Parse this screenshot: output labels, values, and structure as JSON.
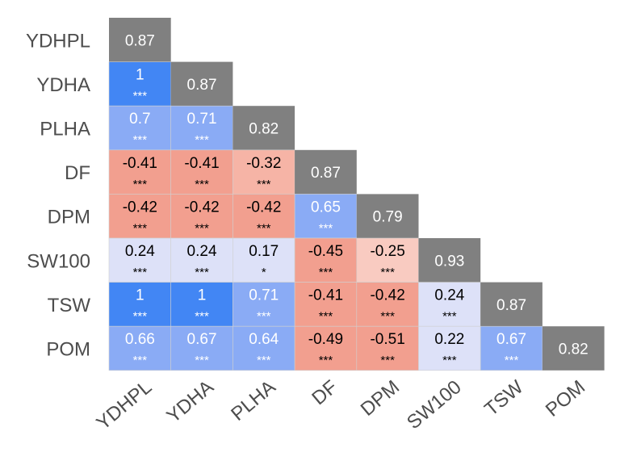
{
  "chart_data": {
    "type": "heatmap",
    "variables": [
      "YDHPL",
      "YDHA",
      "PLHA",
      "DF",
      "DPM",
      "SW100",
      "TSW",
      "POM"
    ],
    "diagonal": [
      "0.87",
      "0.87",
      "0.82",
      "0.87",
      "0.79",
      "0.93",
      "0.87",
      "0.82"
    ],
    "lower_triangle": [
      [],
      [
        "1"
      ],
      [
        "0.7",
        "0.71"
      ],
      [
        "-0.41",
        "-0.41",
        "-0.32"
      ],
      [
        "-0.42",
        "-0.42",
        "-0.42",
        "0.65"
      ],
      [
        "0.24",
        "0.24",
        "0.17",
        "-0.45",
        "-0.25"
      ],
      [
        "1",
        "1",
        "0.71",
        "-0.41",
        "-0.42",
        "0.24"
      ],
      [
        "0.66",
        "0.67",
        "0.64",
        "-0.49",
        "-0.51",
        "0.22",
        "0.67"
      ]
    ],
    "significance": [
      [],
      [
        "***"
      ],
      [
        "***",
        "***"
      ],
      [
        "***",
        "***",
        "***"
      ],
      [
        "***",
        "***",
        "***",
        "***"
      ],
      [
        "***",
        "***",
        "*",
        "***",
        "***"
      ],
      [
        "***",
        "***",
        "***",
        "***",
        "***",
        "***"
      ],
      [
        "***",
        "***",
        "***",
        "***",
        "***",
        "***",
        "***"
      ]
    ],
    "colors": {
      "diagonal": "#808080",
      "positive_strong": "#4286f4",
      "positive_mid": "#8aabf5",
      "positive_weak": "#dde1f8",
      "negative_strong": "#f29f8f",
      "negative_mid": "#f6b4a6",
      "negative_weak": "#f9cbc1",
      "label_text": "#4d4d4d"
    }
  }
}
